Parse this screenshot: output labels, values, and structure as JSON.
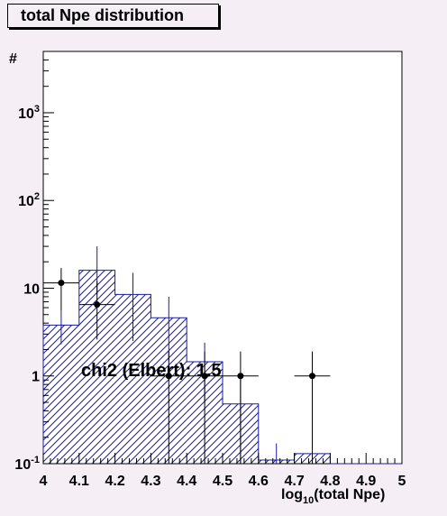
{
  "title": "total Npe distribution",
  "chart_data": {
    "type": "histogram",
    "title": "total Npe distribution",
    "xlabel_main": "log",
    "xlabel_sub": "10",
    "xlabel_rest": "(total Npe)",
    "ylabel": "#",
    "xlim": [
      4,
      5
    ],
    "ylim": [
      0.1,
      5000
    ],
    "yscale": "log",
    "x_ticks": [
      "4",
      "4.1",
      "4.2",
      "4.3",
      "4.4",
      "4.5",
      "4.6",
      "4.7",
      "4.8",
      "4.9",
      "5"
    ],
    "x_tick_values": [
      4,
      4.1,
      4.2,
      4.3,
      4.4,
      4.5,
      4.6,
      4.7,
      4.8,
      4.9,
      5
    ],
    "y_ticks": [
      {
        "value": 0.1,
        "base": "10",
        "exp": "-1"
      },
      {
        "value": 1,
        "base": "1",
        "exp": ""
      },
      {
        "value": 10,
        "base": "10",
        "exp": ""
      },
      {
        "value": 100,
        "base": "10",
        "exp": "2"
      },
      {
        "value": 1000,
        "base": "10",
        "exp": "3"
      }
    ],
    "histogram": {
      "bin_edges": [
        4.0,
        4.1,
        4.2,
        4.3,
        4.4,
        4.5,
        4.6,
        4.7,
        4.8,
        4.9,
        5.0
      ],
      "values": [
        3.8,
        16,
        8.5,
        4.6,
        1.45,
        0.48,
        0.11,
        0.13,
        0.1,
        0.1
      ],
      "err_high": [
        5.5,
        30,
        15,
        8,
        2.4,
        1.0,
        0.17,
        0.19,
        0.1,
        0.1
      ],
      "err_low": [
        2.3,
        8.5,
        2.5,
        1.5,
        0.5,
        0.1,
        0.1,
        0.1,
        0.1,
        0.1
      ],
      "color": "#1a1aa8",
      "fill": "hatched"
    },
    "data_points": {
      "x": [
        4.05,
        4.15,
        4.35,
        4.45,
        4.55,
        4.75
      ],
      "y": [
        11.5,
        6.5,
        1.0,
        1.0,
        1.0,
        1.0
      ],
      "y_high": [
        17,
        12,
        1.9,
        1.9,
        1.9,
        1.9
      ],
      "y_low": [
        5.5,
        2.6,
        0.1,
        0.1,
        0.1,
        0.1
      ],
      "color": "#000000"
    },
    "annotation": "chi2 (Elbert): 1.5"
  }
}
